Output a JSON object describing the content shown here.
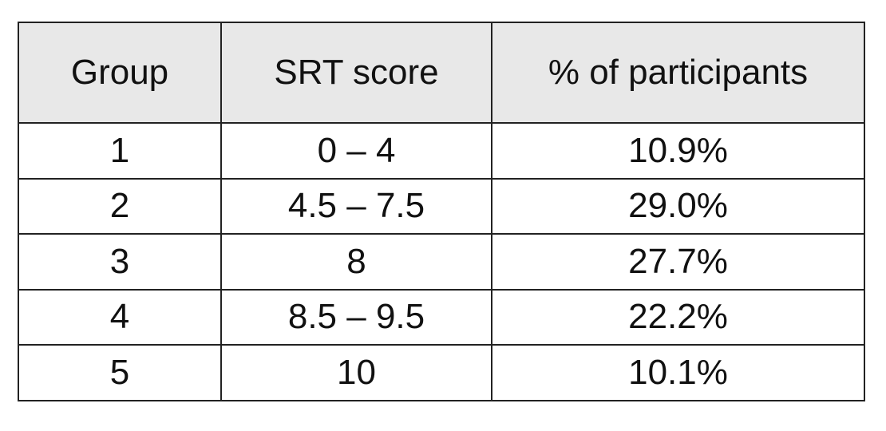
{
  "table": {
    "header": [
      "Group",
      "SRT score",
      "% of participants"
    ],
    "rows": [
      [
        "1",
        "0 – 4",
        "10.9%"
      ],
      [
        "2",
        "4.5 – 7.5",
        "29.0%"
      ],
      [
        "3",
        "8",
        "27.7%"
      ],
      [
        "4",
        "8.5 – 9.5",
        "22.2%"
      ],
      [
        "5",
        "10",
        "10.1%"
      ]
    ]
  }
}
